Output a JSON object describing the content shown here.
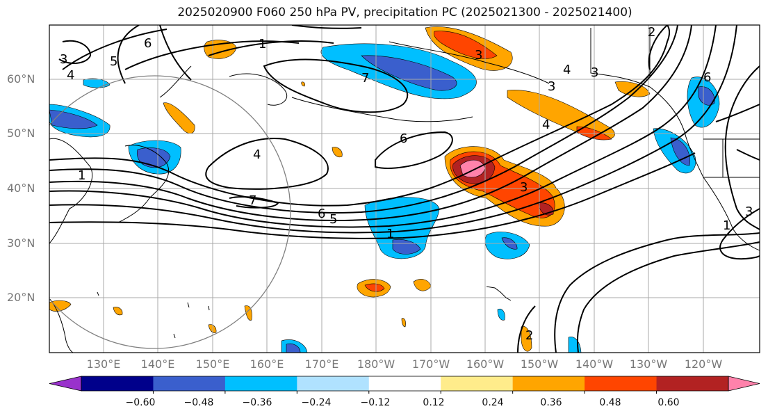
{
  "title": "2025020900 F060 250 hPa PV, precipitation PC (2025021300 - 2025021400)",
  "map": {
    "lat_labels": [
      "60°N",
      "50°N",
      "40°N",
      "30°N",
      "20°N"
    ],
    "lon_labels": [
      "130°E",
      "140°E",
      "150°E",
      "160°E",
      "170°E",
      "180°W",
      "170°W",
      "160°W",
      "150°W",
      "140°W",
      "130°W",
      "120°W"
    ],
    "pv_contour_labels": [
      "1",
      "3",
      "4",
      "5",
      "6",
      "4",
      "6",
      "7",
      "6",
      "5",
      "1",
      "1",
      "3",
      "4",
      "3",
      "2",
      "4",
      "6",
      "3",
      "2",
      "3",
      "3",
      "1",
      "7"
    ]
  },
  "colorbar": {
    "colors": [
      "#9932CC",
      "#00008B",
      "#3A5FCD",
      "#00BFFF",
      "#B0E2FF",
      "#FFFFFF",
      "#FFEC8B",
      "#FFA500",
      "#FF4500",
      "#B22222",
      "#FF82AB"
    ],
    "ticks": [
      "−0.60",
      "−0.48",
      "−0.36",
      "−0.24",
      "−0.12",
      "0.12",
      "0.24",
      "0.36",
      "0.48",
      "0.60"
    ]
  }
}
